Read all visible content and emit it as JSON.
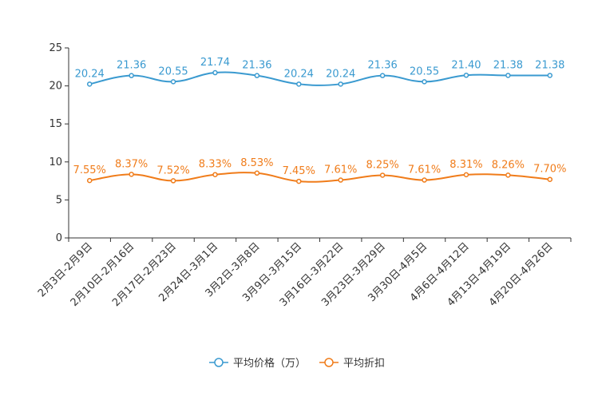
{
  "chart_data": {
    "type": "line",
    "title": "",
    "xlabel": "",
    "ylabel": "",
    "ylim": [
      0,
      25
    ],
    "yticks": [
      0,
      5,
      10,
      15,
      20,
      25
    ],
    "categories": [
      "2月3日-2月9日",
      "2月10日-2月16日",
      "2月17日-2月23日",
      "2月24日-3月1日",
      "3月2日-3月8日",
      "3月9日-3月15日",
      "3月16日-3月22日",
      "3月23日-3月29日",
      "3月30日-4月5日",
      "4月6日-4月12日",
      "4月13日-4月19日",
      "4月20日-4月26日"
    ],
    "series": [
      {
        "name": "平均价格（万）",
        "color": "#3a9ad0",
        "values": [
          20.24,
          21.36,
          20.55,
          21.74,
          21.36,
          20.24,
          20.24,
          21.36,
          20.55,
          21.4,
          21.38,
          21.38
        ],
        "labels": [
          "20.24",
          "21.36",
          "20.55",
          "21.74",
          "21.36",
          "20.24",
          "20.24",
          "21.36",
          "20.55",
          "21.40",
          "21.38",
          "21.38"
        ]
      },
      {
        "name": "平均折扣",
        "color": "#f07c1a",
        "values": [
          7.55,
          8.37,
          7.52,
          8.33,
          8.53,
          7.45,
          7.61,
          8.25,
          7.61,
          8.31,
          8.26,
          7.7
        ],
        "labels": [
          "7.55%",
          "8.37%",
          "7.52%",
          "8.33%",
          "8.53%",
          "7.45%",
          "7.61%",
          "8.25%",
          "7.61%",
          "8.31%",
          "8.26%",
          "7.70%"
        ]
      }
    ],
    "legend_position": "bottom-center",
    "grid": false
  }
}
